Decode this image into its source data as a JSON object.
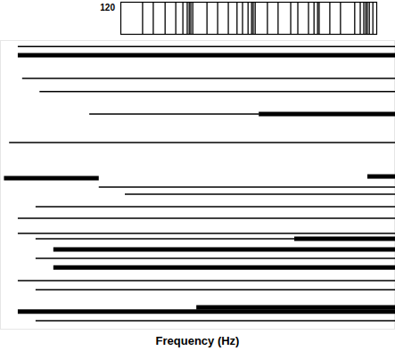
{
  "chart_data": {
    "type": "segments",
    "xlabel": "Frequency (Hz)",
    "xlim": [
      0,
      100
    ],
    "ylim": [
      0,
      100
    ],
    "tick_labels": false,
    "grid": false,
    "color": "#000000",
    "strip": {
      "label": "120",
      "x": [
        36.1,
        38.8,
        41.8,
        44.5,
        46.3,
        47.4,
        47.9,
        48.3,
        48.8,
        52.4,
        55.1,
        57.8,
        60.0,
        61.4,
        62.8,
        63.7,
        64.1,
        64.6,
        67.7,
        70.4,
        73.6,
        75.4,
        78.1,
        79.5,
        80.4,
        80.8,
        83.5,
        86.2,
        89.8,
        91.2,
        92.1,
        92.6,
        93.0,
        93.5,
        94.4
      ]
    },
    "segments": [
      {
        "y": 2.2,
        "x": [
          4.5,
          100
        ],
        "line_style": "thin"
      },
      {
        "y": 5.2,
        "x": [
          4.5,
          100
        ],
        "line_style": "thick"
      },
      {
        "y": 13.2,
        "x": [
          5.6,
          100
        ],
        "line_style": "thin"
      },
      {
        "y": 17.8,
        "x": [
          10,
          100
        ],
        "line_style": "thin"
      },
      {
        "y": 25.5,
        "x": [
          22.6,
          65.5
        ],
        "line_style": "thin"
      },
      {
        "y": 25.5,
        "x": [
          65.5,
          100
        ],
        "line_style": "thick"
      },
      {
        "y": 35.4,
        "x": [
          2.3,
          100
        ],
        "line_style": "thin"
      },
      {
        "y": 47.7,
        "x": [
          1,
          25
        ],
        "line_style": "thick"
      },
      {
        "y": 47.1,
        "x": [
          93,
          100
        ],
        "line_style": "thick"
      },
      {
        "y": 50.8,
        "x": [
          25,
          100
        ],
        "line_style": "thin"
      },
      {
        "y": 53.2,
        "x": [
          31.6,
          100
        ],
        "line_style": "thin"
      },
      {
        "y": 57.5,
        "x": [
          9,
          100
        ],
        "line_style": "thin"
      },
      {
        "y": 61.5,
        "x": [
          4.5,
          100
        ],
        "line_style": "thin"
      },
      {
        "y": 66.8,
        "x": [
          4.5,
          100
        ],
        "line_style": "thin"
      },
      {
        "y": 68.6,
        "x": [
          9,
          74.5
        ],
        "line_style": "thin"
      },
      {
        "y": 68.6,
        "x": [
          74.5,
          100
        ],
        "line_style": "thick"
      },
      {
        "y": 72.3,
        "x": [
          13.5,
          100
        ],
        "line_style": "thick"
      },
      {
        "y": 75.4,
        "x": [
          9,
          100
        ],
        "line_style": "thin"
      },
      {
        "y": 78.5,
        "x": [
          13.5,
          100
        ],
        "line_style": "thick"
      },
      {
        "y": 83.1,
        "x": [
          4.5,
          100
        ],
        "line_style": "thin"
      },
      {
        "y": 86.2,
        "x": [
          9,
          100
        ],
        "line_style": "thin"
      },
      {
        "y": 92.3,
        "x": [
          49.7,
          100
        ],
        "line_style": "thick"
      },
      {
        "y": 93.8,
        "x": [
          4.5,
          100
        ],
        "line_style": "thick"
      },
      {
        "y": 96.9,
        "x": [
          9,
          100
        ],
        "line_style": "thin"
      }
    ]
  }
}
